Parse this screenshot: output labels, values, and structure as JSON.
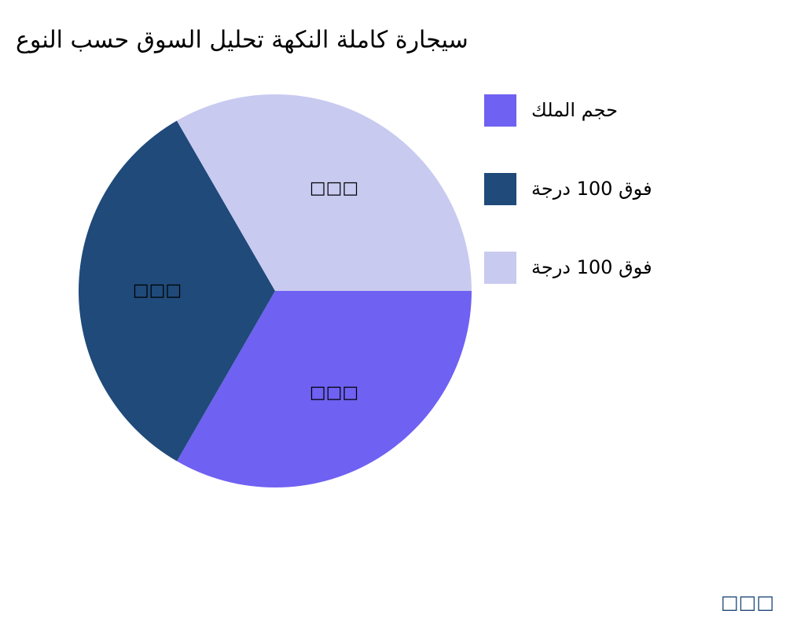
{
  "chart_data": {
    "type": "pie",
    "title": "سيجارة كاملة النكهة تحليل السوق حسب النوع",
    "categories": [
      "حجم الملك",
      "فوق 100 درجة",
      "فوق 100 درجة"
    ],
    "values": [
      33.33,
      33.33,
      33.33
    ],
    "value_labels": [
      "□□□",
      "□□□",
      "□□□"
    ],
    "colors": [
      "#6f61f2",
      "#1f4a7a",
      "#c9caf0"
    ],
    "watermark": "□□□"
  }
}
